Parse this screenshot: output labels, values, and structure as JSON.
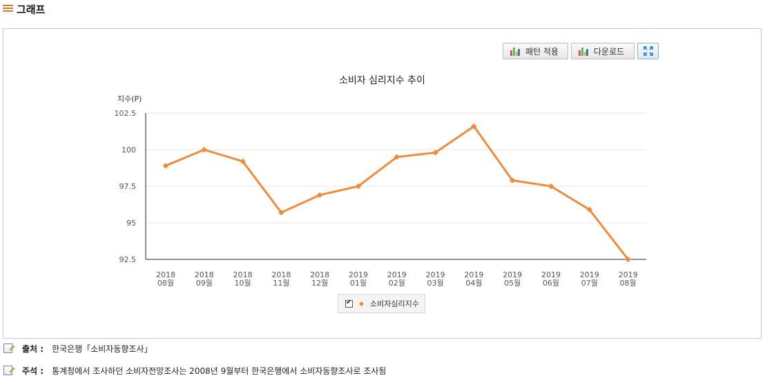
{
  "section": {
    "title": "그래프"
  },
  "toolbar": {
    "pattern_label": "패턴 적용",
    "download_label": "다운로드"
  },
  "chart_data": {
    "type": "line",
    "title": "소비자 심리지수 추이",
    "ylabel": "지수(P)",
    "xlabel": "",
    "ylim": [
      92.5,
      102.5
    ],
    "yticks": [
      92.5,
      95,
      97.5,
      100,
      102.5
    ],
    "ytick_labels": [
      "92.5",
      "95",
      "97.5",
      "100",
      "102.5"
    ],
    "categories": [
      "2018 08월",
      "2018 09월",
      "2018 10월",
      "2018 11월",
      "2018 12월",
      "2019 01월",
      "2019 02월",
      "2019 03월",
      "2019 04월",
      "2019 05월",
      "2019 06월",
      "2019 07월",
      "2019 08월"
    ],
    "category_years": [
      "2018",
      "2018",
      "2018",
      "2018",
      "2018",
      "2019",
      "2019",
      "2019",
      "2019",
      "2019",
      "2019",
      "2019",
      "2019"
    ],
    "category_months": [
      "08월",
      "09월",
      "10월",
      "11월",
      "12월",
      "01월",
      "02월",
      "03월",
      "04월",
      "05월",
      "06월",
      "07월",
      "08월"
    ],
    "series": [
      {
        "name": "소비자심리지수",
        "color": "#f08a3c",
        "values": [
          98.9,
          100.0,
          99.2,
          95.7,
          96.9,
          97.5,
          99.5,
          99.8,
          101.6,
          97.9,
          97.5,
          95.9,
          92.5
        ]
      }
    ],
    "grid": true,
    "legend": "bottom-center"
  },
  "footer": {
    "source_label": "출처 :",
    "source_text": "한국은행「소비자동향조사」",
    "note_label": "주석 :",
    "note_text": "통계청에서 조사하던 소비자전망조사는 2008년 9월부터 한국은행에서 소비자동향조사로 조사됨"
  }
}
